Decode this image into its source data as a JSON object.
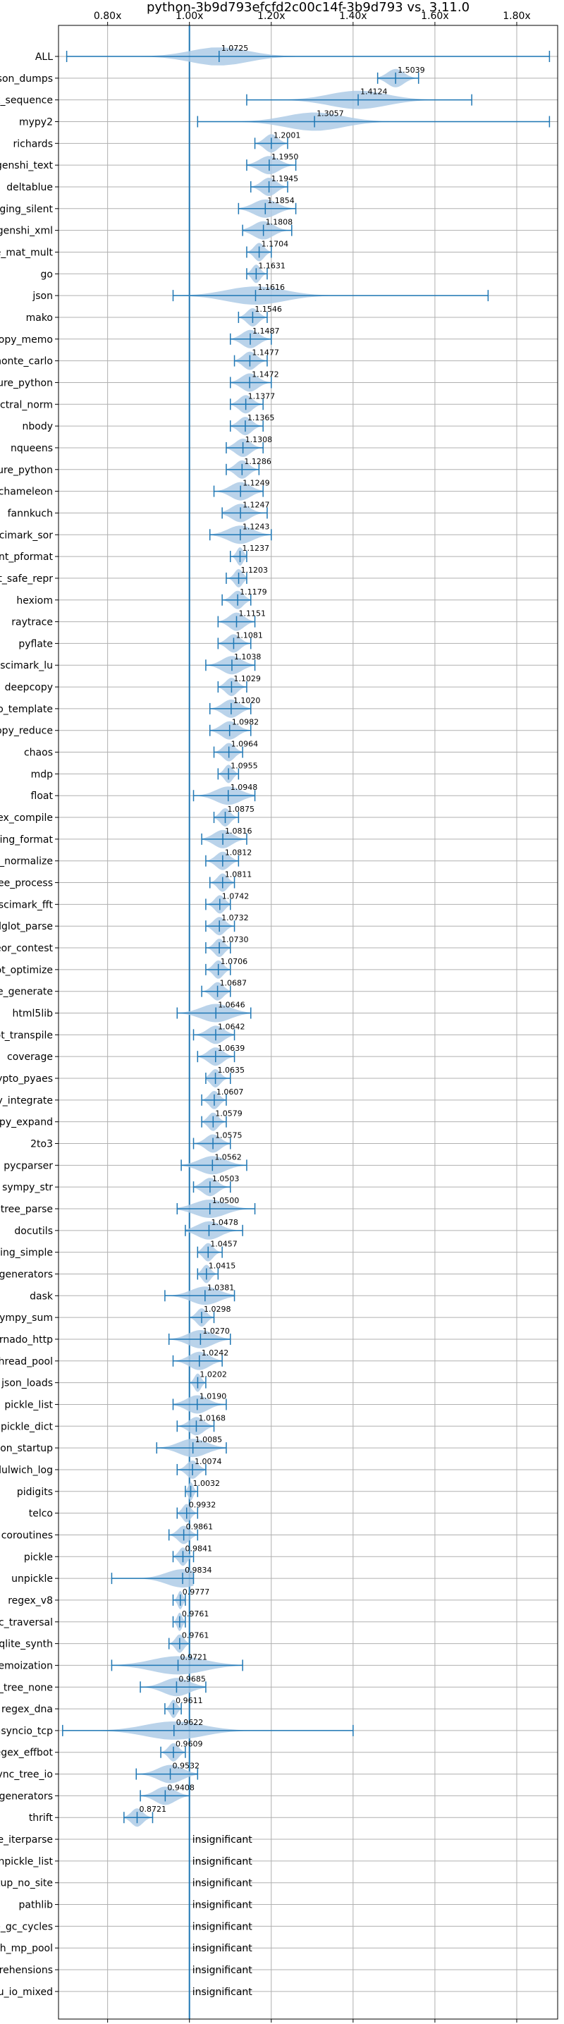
{
  "chart_data": {
    "type": "violin",
    "title": "python-3b9d793efcfd2c00c14f-3b9d793 vs. 3.11.0",
    "xlim": [
      0.68,
      1.9
    ],
    "x_ticks": [
      {
        "value": 0.8,
        "label": "0.80x"
      },
      {
        "value": 1.0,
        "label": "1.00x"
      },
      {
        "value": 1.2,
        "label": "1.20x"
      },
      {
        "value": 1.4,
        "label": "1.40x"
      },
      {
        "value": 1.6,
        "label": "1.60x"
      },
      {
        "value": 1.8,
        "label": "1.80x"
      }
    ],
    "reference_line": 1.0,
    "grid": true,
    "colors": {
      "line": "#1f77b4",
      "violin": "#aecbe6",
      "grid": "#b0b0b0"
    },
    "benchmarks": [
      {
        "name": "ALL",
        "label": "1.0725",
        "median": 1.0725,
        "min": 0.7,
        "max": 1.88
      },
      {
        "name": "json_dumps",
        "label": "1.5039",
        "median": 1.5039,
        "min": 1.46,
        "max": 1.56
      },
      {
        "name": "unpack_sequence",
        "label": "1.4124",
        "median": 1.4124,
        "min": 1.14,
        "max": 1.69
      },
      {
        "name": "mypy2",
        "label": "1.3057",
        "median": 1.3057,
        "min": 1.02,
        "max": 1.88
      },
      {
        "name": "richards",
        "label": "1.2001",
        "median": 1.2001,
        "min": 1.16,
        "max": 1.24
      },
      {
        "name": "genshi_text",
        "label": "1.1950",
        "median": 1.195,
        "min": 1.14,
        "max": 1.26
      },
      {
        "name": "deltablue",
        "label": "1.1945",
        "median": 1.1945,
        "min": 1.15,
        "max": 1.24
      },
      {
        "name": "logging_silent",
        "label": "1.1854",
        "median": 1.1854,
        "min": 1.12,
        "max": 1.26
      },
      {
        "name": "genshi_xml",
        "label": "1.1808",
        "median": 1.1808,
        "min": 1.13,
        "max": 1.25
      },
      {
        "name": "scimark_sparse_mat_mult",
        "label": "1.1704",
        "median": 1.1704,
        "min": 1.14,
        "max": 1.2
      },
      {
        "name": "go",
        "label": "1.1631",
        "median": 1.1631,
        "min": 1.14,
        "max": 1.19
      },
      {
        "name": "json",
        "label": "1.1616",
        "median": 1.1616,
        "min": 0.96,
        "max": 1.73
      },
      {
        "name": "mako",
        "label": "1.1546",
        "median": 1.1546,
        "min": 1.12,
        "max": 1.19
      },
      {
        "name": "deepcopy_memo",
        "label": "1.1487",
        "median": 1.1487,
        "min": 1.1,
        "max": 1.2
      },
      {
        "name": "scimark_monte_carlo",
        "label": "1.1477",
        "median": 1.1477,
        "min": 1.11,
        "max": 1.19
      },
      {
        "name": "unpickle_pure_python",
        "label": "1.1472",
        "median": 1.1472,
        "min": 1.1,
        "max": 1.2
      },
      {
        "name": "spectral_norm",
        "label": "1.1377",
        "median": 1.1377,
        "min": 1.1,
        "max": 1.18
      },
      {
        "name": "nbody",
        "label": "1.1365",
        "median": 1.1365,
        "min": 1.1,
        "max": 1.18
      },
      {
        "name": "nqueens",
        "label": "1.1308",
        "median": 1.1308,
        "min": 1.09,
        "max": 1.18
      },
      {
        "name": "pickle_pure_python",
        "label": "1.1286",
        "median": 1.1286,
        "min": 1.09,
        "max": 1.17
      },
      {
        "name": "chameleon",
        "label": "1.1249",
        "median": 1.1249,
        "min": 1.06,
        "max": 1.18
      },
      {
        "name": "fannkuch",
        "label": "1.1247",
        "median": 1.1247,
        "min": 1.08,
        "max": 1.19
      },
      {
        "name": "scimark_sor",
        "label": "1.1243",
        "median": 1.1243,
        "min": 1.05,
        "max": 1.2
      },
      {
        "name": "pprint_pformat",
        "label": "1.1237",
        "median": 1.1237,
        "min": 1.1,
        "max": 1.14
      },
      {
        "name": "pprint_safe_repr",
        "label": "1.1203",
        "median": 1.1203,
        "min": 1.09,
        "max": 1.14
      },
      {
        "name": "hexiom",
        "label": "1.1179",
        "median": 1.1179,
        "min": 1.08,
        "max": 1.15
      },
      {
        "name": "raytrace",
        "label": "1.1151",
        "median": 1.1151,
        "min": 1.07,
        "max": 1.16
      },
      {
        "name": "pyflate",
        "label": "1.1081",
        "median": 1.1081,
        "min": 1.07,
        "max": 1.15
      },
      {
        "name": "scimark_lu",
        "label": "1.1038",
        "median": 1.1038,
        "min": 1.04,
        "max": 1.16
      },
      {
        "name": "deepcopy",
        "label": "1.1029",
        "median": 1.1029,
        "min": 1.07,
        "max": 1.14
      },
      {
        "name": "django_template",
        "label": "1.1020",
        "median": 1.102,
        "min": 1.05,
        "max": 1.15
      },
      {
        "name": "deepcopy_reduce",
        "label": "1.0982",
        "median": 1.0982,
        "min": 1.05,
        "max": 1.15
      },
      {
        "name": "chaos",
        "label": "1.0964",
        "median": 1.0964,
        "min": 1.06,
        "max": 1.13
      },
      {
        "name": "mdp",
        "label": "1.0955",
        "median": 1.0955,
        "min": 1.07,
        "max": 1.12
      },
      {
        "name": "float",
        "label": "1.0948",
        "median": 1.0948,
        "min": 1.01,
        "max": 1.16
      },
      {
        "name": "regex_compile",
        "label": "1.0875",
        "median": 1.0875,
        "min": 1.06,
        "max": 1.12
      },
      {
        "name": "logging_format",
        "label": "1.0816",
        "median": 1.0816,
        "min": 1.03,
        "max": 1.14
      },
      {
        "name": "sqlglot_normalize",
        "label": "1.0812",
        "median": 1.0812,
        "min": 1.04,
        "max": 1.12
      },
      {
        "name": "xml_etree_process",
        "label": "1.0811",
        "median": 1.0811,
        "min": 1.05,
        "max": 1.11
      },
      {
        "name": "scimark_fft",
        "label": "1.0742",
        "median": 1.0742,
        "min": 1.04,
        "max": 1.1
      },
      {
        "name": "sqlglot_parse",
        "label": "1.0732",
        "median": 1.0732,
        "min": 1.04,
        "max": 1.11
      },
      {
        "name": "meteor_contest",
        "label": "1.0730",
        "median": 1.073,
        "min": 1.04,
        "max": 1.1
      },
      {
        "name": "sqlglot_optimize",
        "label": "1.0706",
        "median": 1.0706,
        "min": 1.04,
        "max": 1.1
      },
      {
        "name": "xml_etree_generate",
        "label": "1.0687",
        "median": 1.0687,
        "min": 1.03,
        "max": 1.1
      },
      {
        "name": "html5lib",
        "label": "1.0646",
        "median": 1.0646,
        "min": 0.97,
        "max": 1.15
      },
      {
        "name": "sqlglot_transpile",
        "label": "1.0642",
        "median": 1.0642,
        "min": 1.01,
        "max": 1.11
      },
      {
        "name": "coverage",
        "label": "1.0639",
        "median": 1.0639,
        "min": 1.02,
        "max": 1.11
      },
      {
        "name": "crypto_pyaes",
        "label": "1.0635",
        "median": 1.0635,
        "min": 1.04,
        "max": 1.1
      },
      {
        "name": "sympy_integrate",
        "label": "1.0607",
        "median": 1.0607,
        "min": 1.03,
        "max": 1.09
      },
      {
        "name": "sympy_expand",
        "label": "1.0579",
        "median": 1.0579,
        "min": 1.03,
        "max": 1.09
      },
      {
        "name": "2to3",
        "label": "1.0575",
        "median": 1.0575,
        "min": 1.01,
        "max": 1.1
      },
      {
        "name": "pycparser",
        "label": "1.0562",
        "median": 1.0562,
        "min": 0.98,
        "max": 1.14
      },
      {
        "name": "sympy_str",
        "label": "1.0503",
        "median": 1.0503,
        "min": 1.01,
        "max": 1.1
      },
      {
        "name": "xml_etree_parse",
        "label": "1.0500",
        "median": 1.05,
        "min": 0.97,
        "max": 1.16
      },
      {
        "name": "docutils",
        "label": "1.0478",
        "median": 1.0478,
        "min": 0.99,
        "max": 1.13
      },
      {
        "name": "logging_simple",
        "label": "1.0457",
        "median": 1.0457,
        "min": 1.02,
        "max": 1.08
      },
      {
        "name": "async_generators",
        "label": "1.0415",
        "median": 1.0415,
        "min": 1.02,
        "max": 1.07
      },
      {
        "name": "dask",
        "label": "1.0381",
        "median": 1.0381,
        "min": 0.94,
        "max": 1.11
      },
      {
        "name": "sympy_sum",
        "label": "1.0298",
        "median": 1.0298,
        "min": 1.0,
        "max": 1.06
      },
      {
        "name": "tornado_http",
        "label": "1.0270",
        "median": 1.027,
        "min": 0.95,
        "max": 1.1
      },
      {
        "name": "bench_thread_pool",
        "label": "1.0242",
        "median": 1.0242,
        "min": 0.96,
        "max": 1.08
      },
      {
        "name": "json_loads",
        "label": "1.0202",
        "median": 1.0202,
        "min": 1.0,
        "max": 1.04
      },
      {
        "name": "pickle_list",
        "label": "1.0190",
        "median": 1.019,
        "min": 0.96,
        "max": 1.09
      },
      {
        "name": "pickle_dict",
        "label": "1.0168",
        "median": 1.0168,
        "min": 0.97,
        "max": 1.06
      },
      {
        "name": "python_startup",
        "label": "1.0085",
        "median": 1.0085,
        "min": 0.92,
        "max": 1.09
      },
      {
        "name": "dulwich_log",
        "label": "1.0074",
        "median": 1.0074,
        "min": 0.97,
        "max": 1.04
      },
      {
        "name": "pidigits",
        "label": "1.0032",
        "median": 1.0032,
        "min": 0.99,
        "max": 1.02
      },
      {
        "name": "telco",
        "label": "0.9932",
        "median": 0.9932,
        "min": 0.97,
        "max": 1.02
      },
      {
        "name": "coroutines",
        "label": "0.9861",
        "median": 0.9861,
        "min": 0.95,
        "max": 1.02
      },
      {
        "name": "pickle",
        "label": "0.9841",
        "median": 0.9841,
        "min": 0.96,
        "max": 1.01
      },
      {
        "name": "unpickle",
        "label": "0.9834",
        "median": 0.9834,
        "min": 0.81,
        "max": 1.01
      },
      {
        "name": "regex_v8",
        "label": "0.9777",
        "median": 0.9777,
        "min": 0.96,
        "max": 0.99
      },
      {
        "name": "gc_traversal",
        "label": "0.9761",
        "median": 0.9761,
        "min": 0.96,
        "max": 0.99
      },
      {
        "name": "sqlite_synth",
        "label": "0.9761",
        "median": 0.9761,
        "min": 0.95,
        "max": 1.0
      },
      {
        "name": "async_tree_memoization",
        "label": "0.9721",
        "median": 0.9721,
        "min": 0.81,
        "max": 1.13
      },
      {
        "name": "async_tree_none",
        "label": "0.9685",
        "median": 0.9685,
        "min": 0.88,
        "max": 1.04
      },
      {
        "name": "regex_dna",
        "label": "0.9611",
        "median": 0.9611,
        "min": 0.94,
        "max": 0.98
      },
      {
        "name": "asyncio_tcp",
        "label": "0.9622",
        "median": 0.9622,
        "min": 0.69,
        "max": 1.4
      },
      {
        "name": "regex_effbot",
        "label": "0.9609",
        "median": 0.9609,
        "min": 0.93,
        "max": 0.99
      },
      {
        "name": "async_tree_io",
        "label": "0.9532",
        "median": 0.9532,
        "min": 0.87,
        "max": 1.02
      },
      {
        "name": "generators",
        "label": "0.9408",
        "median": 0.9408,
        "min": 0.88,
        "max": 1.0
      },
      {
        "name": "thrift",
        "label": "0.8721",
        "median": 0.8721,
        "min": 0.84,
        "max": 0.91
      },
      {
        "name": "xml_etree_iterparse",
        "label": "insignificant"
      },
      {
        "name": "unpickle_list",
        "label": "insignificant"
      },
      {
        "name": "python_startup_no_site",
        "label": "insignificant"
      },
      {
        "name": "pathlib",
        "label": "insignificant"
      },
      {
        "name": "create_gc_cycles",
        "label": "insignificant"
      },
      {
        "name": "bench_mp_pool",
        "label": "insignificant"
      },
      {
        "name": "comprehensions",
        "label": "insignificant"
      },
      {
        "name": "async_tree_cpu_io_mixed",
        "label": "insignificant"
      }
    ]
  }
}
